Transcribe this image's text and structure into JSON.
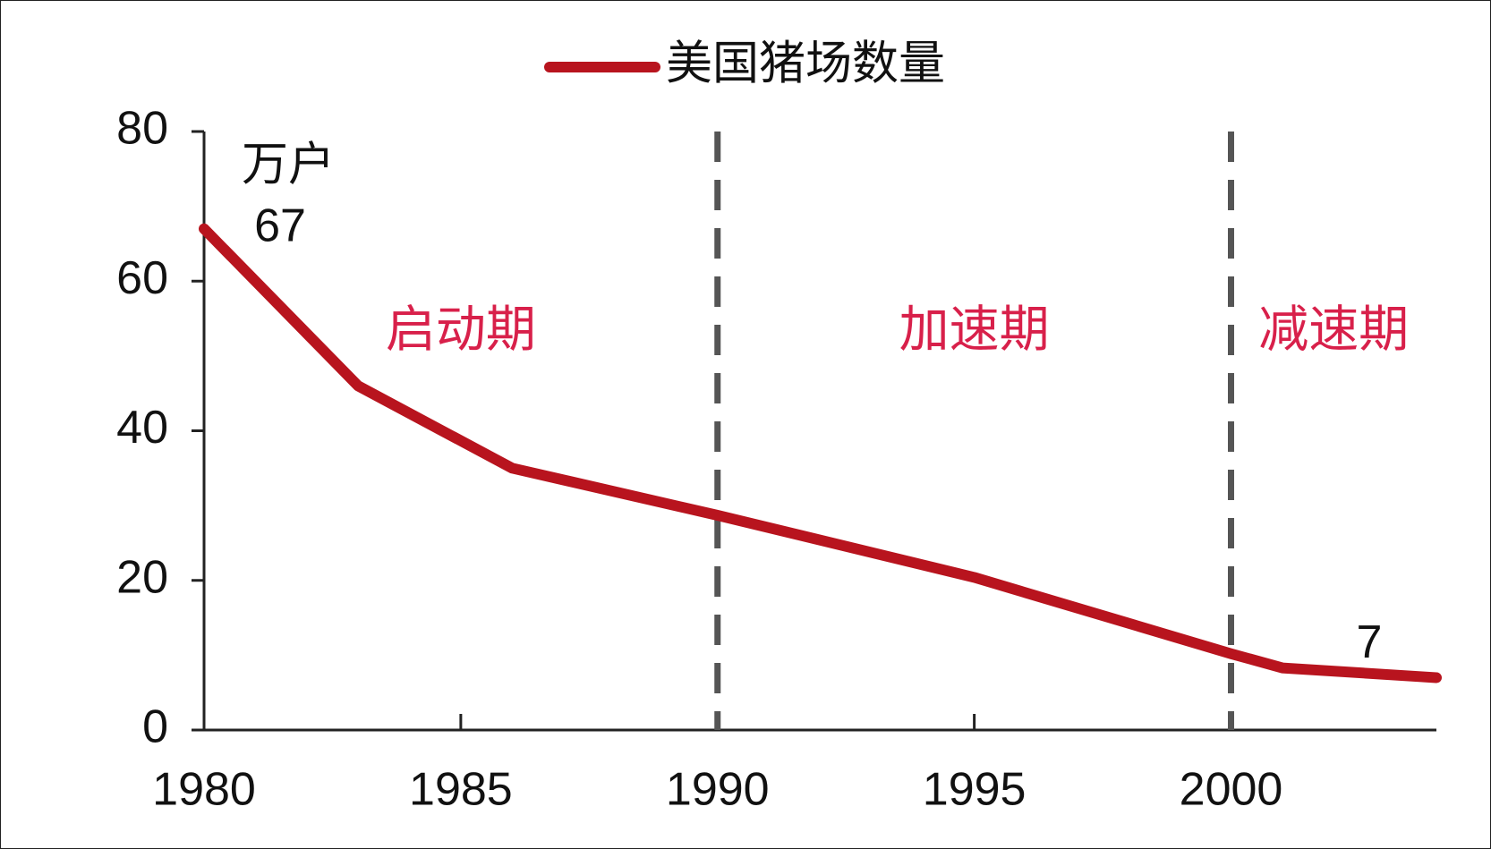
{
  "chart_data": {
    "type": "line",
    "legend_position": "top",
    "unit_label": "万户",
    "x": [
      1980,
      1983,
      1986,
      1990,
      1995,
      2000,
      2001,
      2004
    ],
    "series": [
      {
        "name": "美国猪场数量",
        "color": "#b8141e",
        "values": [
          67,
          46,
          35,
          28.7,
          20.4,
          10.2,
          8.3,
          7
        ],
        "value_labels": [
          "67",
          null,
          null,
          null,
          null,
          null,
          null,
          "7"
        ]
      }
    ],
    "xlim": [
      1980,
      2004
    ],
    "xticks": [
      1980,
      1985,
      1990,
      1995,
      2000
    ],
    "ylim": [
      0,
      80
    ],
    "yticks": [
      0,
      20,
      40,
      60,
      80
    ],
    "grid": false,
    "reference_lines": [
      1990,
      2000
    ],
    "phases": [
      "启动期",
      "加速期",
      "减速期"
    ]
  }
}
